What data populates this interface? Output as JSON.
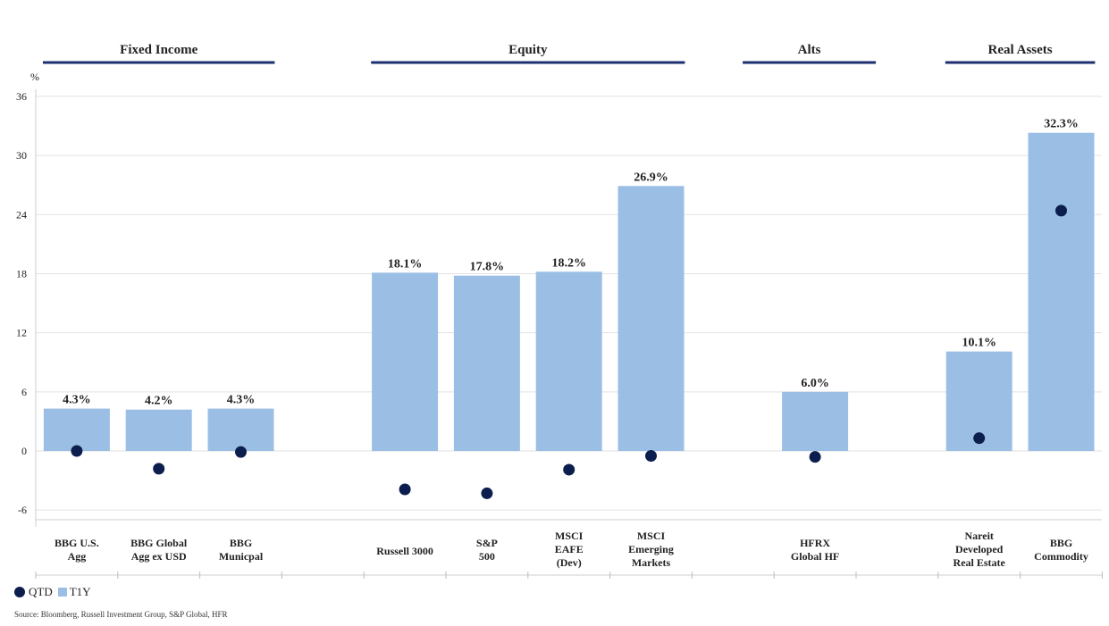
{
  "chart_data": {
    "type": "bar",
    "unit_label": "%",
    "ylim": [
      -6,
      36
    ],
    "yticks": [
      36,
      30,
      24,
      18,
      12,
      6,
      0,
      -6
    ],
    "groups": [
      {
        "label": "Fixed Income",
        "categories": [
          0,
          1,
          2
        ]
      },
      {
        "label": "Equity",
        "categories": [
          4,
          5,
          6,
          7
        ]
      },
      {
        "label": "Alts",
        "categories": [
          9
        ]
      },
      {
        "label": "Real Assets",
        "categories": [
          11,
          12
        ]
      }
    ],
    "categories": [
      "BBG U.S.\nAgg",
      "BBG Global\nAgg ex USD",
      "BBG\nMunicpal",
      "",
      "Russell 3000",
      "S&P\n500",
      "MSCI\nEAFE\n(Dev)",
      "MSCI\nEmerging\nMarkets",
      "",
      "HFRX\nGlobal HF",
      "",
      "Nareit\nDeveloped\nReal Estate",
      "BBG\nCommodity"
    ],
    "series": [
      {
        "name": "T1Y",
        "kind": "bar",
        "color": "#9bbfe4",
        "values": [
          4.3,
          4.2,
          4.3,
          null,
          18.1,
          17.8,
          18.2,
          26.9,
          null,
          6.0,
          null,
          10.1,
          32.3
        ],
        "labels": [
          "4.3%",
          "4.2%",
          "4.3%",
          null,
          "18.1%",
          "17.8%",
          "18.2%",
          "26.9%",
          null,
          "6.0%",
          null,
          "10.1%",
          "32.3%"
        ]
      },
      {
        "name": "QTD",
        "kind": "dot",
        "color": "#0c1e4d",
        "values": [
          0.0,
          -1.8,
          -0.1,
          null,
          -3.9,
          -4.3,
          -1.9,
          -0.5,
          null,
          -0.6,
          null,
          1.3,
          24.4
        ]
      }
    ],
    "grid": true
  },
  "colors": {
    "accent_line": "#1d2f6f",
    "bar": "#9bbfe4",
    "dot": "#0c1e4d",
    "grid": "#e2e2e2"
  },
  "legend": {
    "qtd_label": "QTD",
    "t1y_label": "T1Y"
  },
  "source": "Source: Bloomberg, Russell Investment Group, S&P Global, HFR"
}
